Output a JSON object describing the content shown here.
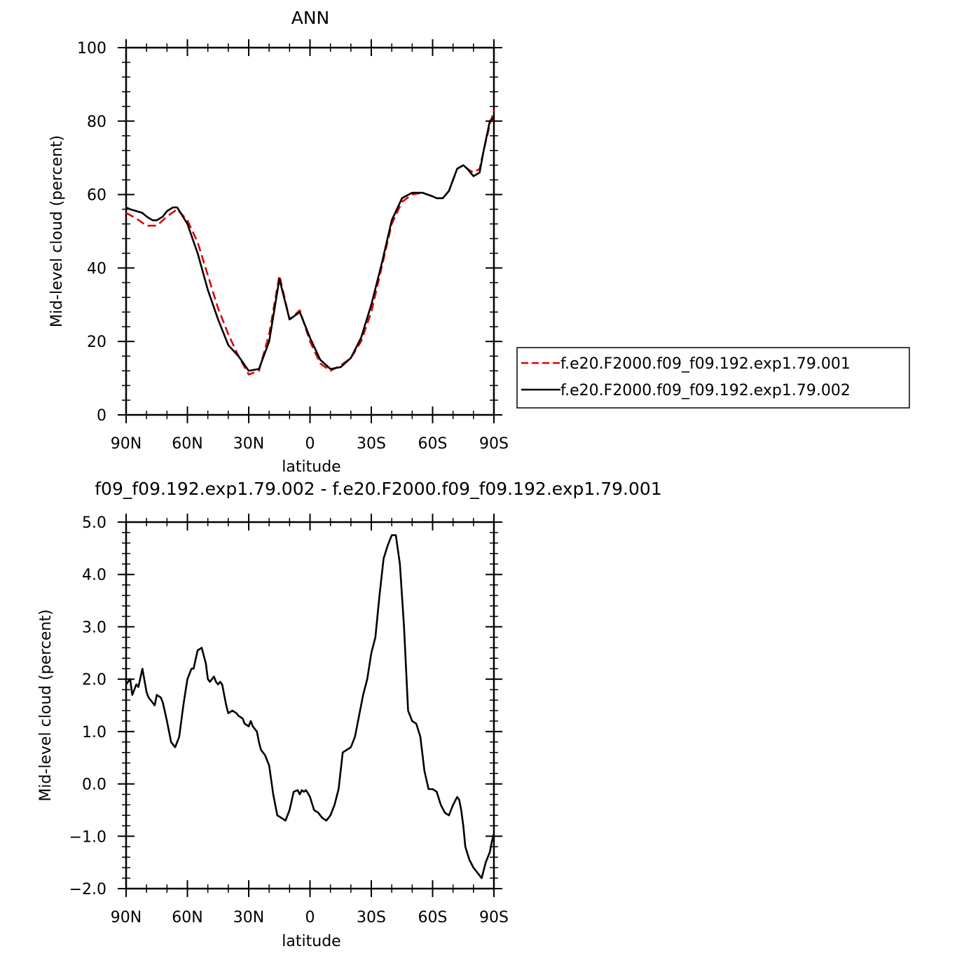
{
  "chart_data": [
    {
      "type": "line",
      "title": "ANN",
      "xlabel": "latitude",
      "ylabel": "Mid-level cloud (percent)",
      "xlim": [
        90,
        -90
      ],
      "ylim": [
        0,
        100
      ],
      "xticks": [
        90,
        60,
        30,
        0,
        -30,
        -60,
        -90
      ],
      "xtick_labels": [
        "90N",
        "60N",
        "30N",
        "0",
        "30S",
        "60S",
        "90S"
      ],
      "yticks": [
        0,
        20,
        40,
        60,
        80,
        100
      ],
      "ytick_labels": [
        "0",
        "20",
        "40",
        "60",
        "80",
        "100"
      ],
      "legend_position": "right",
      "series": [
        {
          "name": "f.e20.F2000.f09_f09.192.exp1.79.001",
          "color": "#e00000",
          "style": "dashed",
          "x": [
            90,
            85,
            80,
            75,
            70,
            65,
            60,
            55,
            50,
            45,
            40,
            35,
            30,
            25,
            20,
            15,
            10,
            5,
            0,
            -5,
            -10,
            -15,
            -20,
            -25,
            -30,
            -35,
            -40,
            -45,
            -50,
            -55,
            -60,
            -62,
            -65,
            -68,
            -72,
            -75,
            -77,
            -80,
            -83,
            -85,
            -88,
            -90
          ],
          "y": [
            55,
            53.5,
            51.5,
            51.5,
            54,
            56,
            53,
            47,
            38,
            29,
            22,
            16,
            11,
            12,
            22,
            38,
            26,
            28.5,
            20,
            14,
            12,
            13.5,
            15.5,
            20,
            28,
            40,
            52,
            58,
            60,
            60.5,
            59.5,
            59,
            59,
            61,
            67,
            68,
            67,
            66,
            67,
            72,
            79,
            83
          ]
        },
        {
          "name": "f.e20.F2000.f09_f09.192.exp1.79.002",
          "color": "#000000",
          "style": "solid",
          "x": [
            90,
            88,
            85,
            82,
            80,
            77,
            75,
            72,
            70,
            67,
            65,
            60,
            55,
            50,
            45,
            40,
            35,
            30,
            25,
            20,
            15,
            10,
            5,
            0,
            -5,
            -10,
            -15,
            -20,
            -25,
            -30,
            -35,
            -40,
            -45,
            -50,
            -55,
            -60,
            -62,
            -65,
            -68,
            -72,
            -75,
            -77,
            -80,
            -83,
            -85,
            -88,
            -90
          ],
          "y": [
            56.5,
            56,
            55.5,
            55,
            54,
            53,
            53,
            54,
            55.5,
            56.5,
            56.5,
            52,
            44,
            34,
            26,
            19,
            16,
            12,
            12.5,
            20,
            37,
            26,
            28,
            21,
            15,
            12.5,
            13,
            15.5,
            21,
            30,
            41,
            53,
            59,
            60.5,
            60.5,
            59.5,
            59,
            59,
            61,
            67,
            68,
            67,
            65,
            66,
            72,
            80,
            81
          ]
        }
      ]
    },
    {
      "type": "line",
      "title": "f09_f09.192.exp1.79.002 - f.e20.F2000.f09_f09.192.exp1.79.001",
      "xlabel": "latitude",
      "ylabel": "Mid-level cloud (percent)",
      "xlim": [
        90,
        -90
      ],
      "ylim": [
        -2.0,
        5.0
      ],
      "xticks": [
        90,
        60,
        30,
        0,
        -30,
        -60,
        -90
      ],
      "xtick_labels": [
        "90N",
        "60N",
        "30N",
        "0",
        "30S",
        "60S",
        "90S"
      ],
      "yticks": [
        -2,
        -1,
        0,
        1,
        2,
        3,
        4,
        5
      ],
      "ytick_labels": [
        "−2.0",
        "−1.0",
        "0.0",
        "1.0",
        "2.0",
        "3.0",
        "4.0",
        "5.0"
      ],
      "series": [
        {
          "color": "#000000",
          "style": "solid",
          "x": [
            90,
            88,
            87,
            86,
            85,
            84,
            82,
            80,
            79,
            78,
            76,
            75,
            73,
            72,
            70,
            68,
            66,
            64,
            62,
            60,
            58,
            57,
            55,
            53,
            51,
            50,
            49,
            47,
            46,
            45,
            44,
            43,
            42,
            41,
            40,
            38,
            36,
            35,
            33,
            32,
            30,
            29,
            28,
            26,
            25,
            24,
            22,
            20,
            18,
            16,
            14,
            12,
            10,
            8,
            6,
            5,
            4,
            3,
            2,
            1,
            0,
            -2,
            -4,
            -6,
            -8,
            -10,
            -12,
            -14,
            -16,
            -18,
            -20,
            -22,
            -24,
            -26,
            -28,
            -30,
            -32,
            -34,
            -36,
            -38,
            -40,
            -42,
            -44,
            -46,
            -48,
            -50,
            -52,
            -54,
            -56,
            -58,
            -60,
            -62,
            -64,
            -66,
            -68,
            -70,
            -72,
            -73,
            -74,
            -75,
            -76,
            -78,
            -80,
            -82,
            -84,
            -86,
            -88,
            -89,
            -90
          ],
          "y": [
            1.9,
            2.0,
            1.7,
            1.8,
            1.9,
            1.85,
            2.2,
            1.75,
            1.65,
            1.6,
            1.5,
            1.7,
            1.65,
            1.55,
            1.2,
            0.8,
            0.7,
            0.9,
            1.5,
            2.0,
            2.2,
            2.2,
            2.55,
            2.6,
            2.3,
            2.0,
            1.95,
            2.05,
            1.95,
            1.9,
            1.95,
            1.9,
            1.7,
            1.5,
            1.35,
            1.4,
            1.35,
            1.3,
            1.25,
            1.15,
            1.1,
            1.2,
            1.1,
            1.0,
            0.8,
            0.65,
            0.55,
            0.35,
            -0.2,
            -0.6,
            -0.65,
            -0.7,
            -0.5,
            -0.15,
            -0.12,
            -0.2,
            -0.12,
            -0.15,
            -0.12,
            -0.18,
            -0.25,
            -0.5,
            -0.55,
            -0.65,
            -0.7,
            -0.6,
            -0.4,
            -0.1,
            0.6,
            0.65,
            0.7,
            0.9,
            1.3,
            1.7,
            2.0,
            2.5,
            2.8,
            3.6,
            4.3,
            4.55,
            4.75,
            4.75,
            4.2,
            3.0,
            1.4,
            1.2,
            1.15,
            0.9,
            0.25,
            -0.1,
            -0.1,
            -0.15,
            -0.4,
            -0.55,
            -0.6,
            -0.4,
            -0.25,
            -0.3,
            -0.5,
            -0.8,
            -1.2,
            -1.45,
            -1.6,
            -1.7,
            -1.8,
            -1.5,
            -1.3,
            -1.1,
            -0.95
          ]
        }
      ]
    }
  ]
}
